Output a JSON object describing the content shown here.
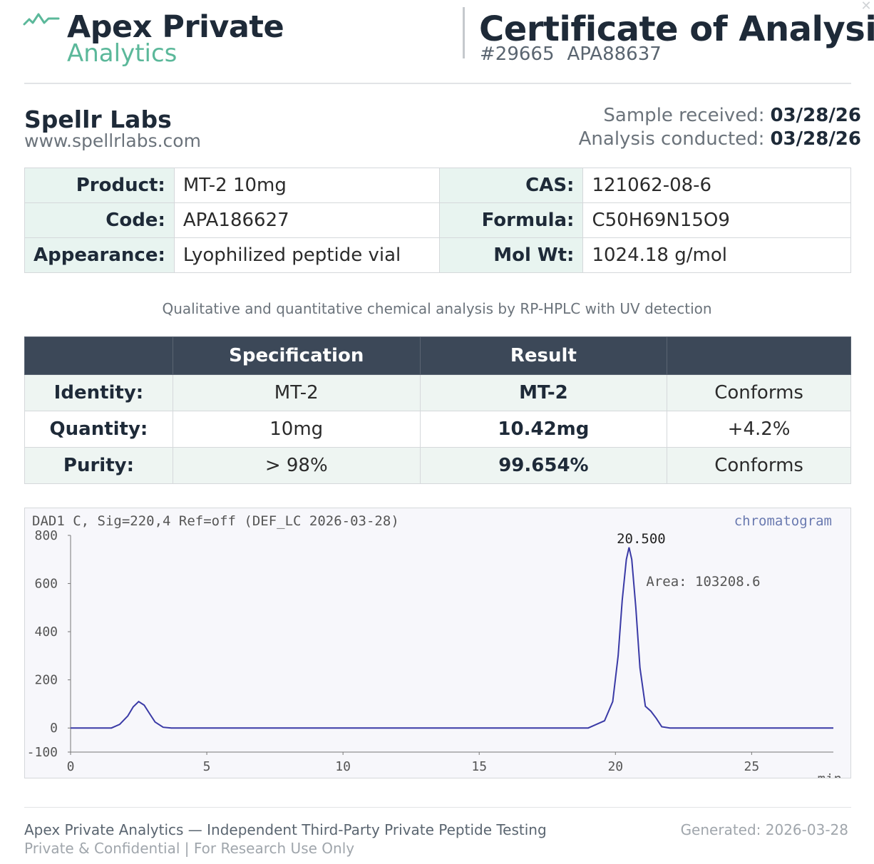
{
  "header": {
    "brand_line1": "Apex Private",
    "brand_line2": "Analytics",
    "title": "Certificate of Analysis",
    "cert_number": "#29665",
    "cert_code": "APA88637",
    "accent_color": "#5bb89a"
  },
  "client": {
    "name": "Spellr Labs",
    "url": "www.spellrlabs.com",
    "received_label": "Sample received:",
    "received_value": "03/28/26",
    "conducted_label": "Analysis conducted:",
    "conducted_value": "03/28/26"
  },
  "info": {
    "product_label": "Product:",
    "product_value": "MT-2 10mg",
    "code_label": "Code:",
    "code_value": "APA186627",
    "appearance_label": "Appearance:",
    "appearance_value": "Lyophilized peptide vial",
    "cas_label": "CAS:",
    "cas_value": "121062-08-6",
    "formula_label": "Formula:",
    "formula_value": "C50H69N15O9",
    "molwt_label": "Mol Wt:",
    "molwt_value": "1024.18 g/mol"
  },
  "method": "Qualitative and quantitative chemical analysis by RP-HPLC with UV detection",
  "results": {
    "headers": [
      "",
      "Specification",
      "Result",
      ""
    ],
    "rows": [
      {
        "label": "Identity:",
        "spec": "MT-2",
        "result": "MT-2",
        "status": "Conforms"
      },
      {
        "label": "Quantity:",
        "spec": "10mg",
        "result": "10.42mg",
        "status": "+4.2%"
      },
      {
        "label": "Purity:",
        "spec": "> 98%",
        "result": "99.654%",
        "status": "Conforms"
      }
    ]
  },
  "chart_data": {
    "type": "line",
    "title": "DAD1 C, Sig=220,4 Ref=off (DEF_LC 2026-03-28)",
    "tag": "chromatogram",
    "xlabel": "min",
    "ylabel": "",
    "xlim": [
      0,
      28
    ],
    "ylim": [
      -100,
      800
    ],
    "xticks": [
      0,
      5,
      10,
      15,
      20,
      25
    ],
    "yticks": [
      800,
      600,
      400,
      200,
      0,
      -100
    ],
    "peak_label": "20.500",
    "area_label": "Area:  103208.6",
    "line_color": "#3a3aa6",
    "x": [
      0,
      1.0,
      1.5,
      1.8,
      2.1,
      2.3,
      2.5,
      2.7,
      2.9,
      3.1,
      3.4,
      3.7,
      4.0,
      5,
      8,
      10,
      12,
      15,
      18,
      19.0,
      19.6,
      19.9,
      20.1,
      20.25,
      20.4,
      20.5,
      20.6,
      20.75,
      20.9,
      21.1,
      21.3,
      21.5,
      21.7,
      22.0,
      22.5,
      25,
      28
    ],
    "y": [
      0,
      0,
      0,
      15,
      50,
      88,
      110,
      95,
      60,
      25,
      3,
      0,
      0,
      0,
      0,
      0,
      0,
      0,
      0,
      0,
      30,
      110,
      300,
      530,
      700,
      750,
      700,
      500,
      250,
      90,
      70,
      40,
      5,
      0,
      0,
      0,
      0
    ]
  },
  "footer": {
    "line1": "Apex Private Analytics — Independent Third-Party Private Peptide Testing",
    "line2": "Private & Confidential  |  For Research Use Only",
    "generated": "Generated: 2026-03-28"
  }
}
